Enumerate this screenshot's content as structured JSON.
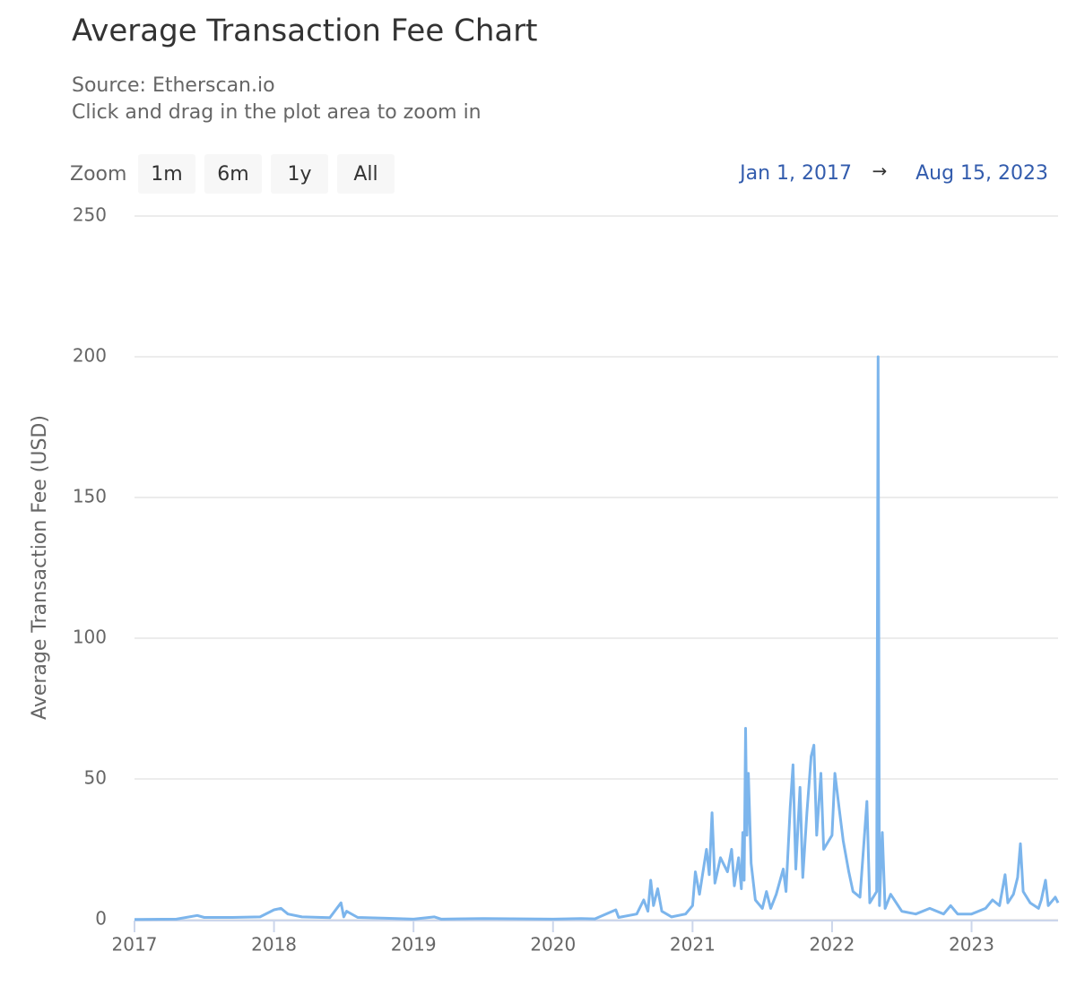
{
  "chart_data": {
    "type": "line",
    "title": "Average Transaction Fee Chart",
    "subtitle": [
      "Source: Etherscan.io",
      "Click and drag in the plot area to zoom in"
    ],
    "zoom_label": "Zoom",
    "zoom_buttons": [
      "1m",
      "6m",
      "1y",
      "All"
    ],
    "range": {
      "from": "Jan 1, 2017",
      "separator": "→",
      "to": "Aug 15, 2023"
    },
    "y_label": "Average Transaction Fee (USD)",
    "grid": true,
    "xlim": [
      2017,
      2023.62
    ],
    "xticks": [
      2017,
      2018,
      2019,
      2020,
      2021,
      2022,
      2023
    ],
    "ylim": [
      0,
      250
    ],
    "yticks": [
      0,
      50,
      100,
      150,
      200,
      250
    ],
    "x": [
      2017.0,
      2017.3,
      2017.45,
      2017.5,
      2017.7,
      2017.9,
      2018.0,
      2018.05,
      2018.1,
      2018.2,
      2018.4,
      2018.48,
      2018.5,
      2018.52,
      2018.6,
      2018.8,
      2019.0,
      2019.15,
      2019.2,
      2019.5,
      2020.0,
      2020.2,
      2020.3,
      2020.45,
      2020.47,
      2020.6,
      2020.65,
      2020.68,
      2020.7,
      2020.72,
      2020.75,
      2020.78,
      2020.85,
      2020.95,
      2021.0,
      2021.02,
      2021.05,
      2021.1,
      2021.12,
      2021.14,
      2021.16,
      2021.2,
      2021.25,
      2021.28,
      2021.3,
      2021.33,
      2021.35,
      2021.36,
      2021.37,
      2021.38,
      2021.39,
      2021.4,
      2021.42,
      2021.45,
      2021.5,
      2021.53,
      2021.56,
      2021.6,
      2021.65,
      2021.67,
      2021.7,
      2021.72,
      2021.74,
      2021.77,
      2021.79,
      2021.82,
      2021.85,
      2021.87,
      2021.89,
      2021.92,
      2021.94,
      2022.0,
      2022.02,
      2022.05,
      2022.08,
      2022.12,
      2022.15,
      2022.2,
      2022.25,
      2022.27,
      2022.32,
      2022.33,
      2022.34,
      2022.36,
      2022.38,
      2022.42,
      2022.5,
      2022.6,
      2022.7,
      2022.8,
      2022.85,
      2022.9,
      2023.0,
      2023.1,
      2023.15,
      2023.2,
      2023.24,
      2023.26,
      2023.3,
      2023.33,
      2023.35,
      2023.37,
      2023.42,
      2023.48,
      2023.5,
      2023.53,
      2023.55,
      2023.6,
      2023.62
    ],
    "series": [
      {
        "name": "Average Transaction Fee",
        "color": "#7cb5ec",
        "values": [
          0.1,
          0.2,
          1.5,
          0.8,
          0.8,
          1.0,
          3.5,
          4,
          2,
          1,
          0.7,
          6,
          1,
          3,
          0.8,
          0.5,
          0.2,
          1,
          0.2,
          0.4,
          0.2,
          0.4,
          0.3,
          3.5,
          0.8,
          2,
          7,
          3,
          14,
          5,
          11,
          3,
          1,
          2,
          5,
          17,
          9,
          25,
          16,
          38,
          13,
          22,
          17,
          25,
          12,
          22,
          11,
          31,
          14,
          68,
          30,
          52,
          20,
          7,
          4,
          10,
          4,
          9,
          18,
          10,
          40,
          55,
          18,
          47,
          15,
          38,
          58,
          62,
          30,
          52,
          25,
          30,
          52,
          40,
          28,
          17,
          10,
          8,
          42,
          6,
          10,
          200,
          5,
          31,
          4,
          9,
          3,
          2,
          4,
          2,
          5,
          2,
          2,
          4,
          7,
          5,
          16,
          6,
          9,
          15,
          27,
          10,
          6,
          4,
          7,
          14,
          5,
          8,
          6
        ]
      }
    ]
  }
}
